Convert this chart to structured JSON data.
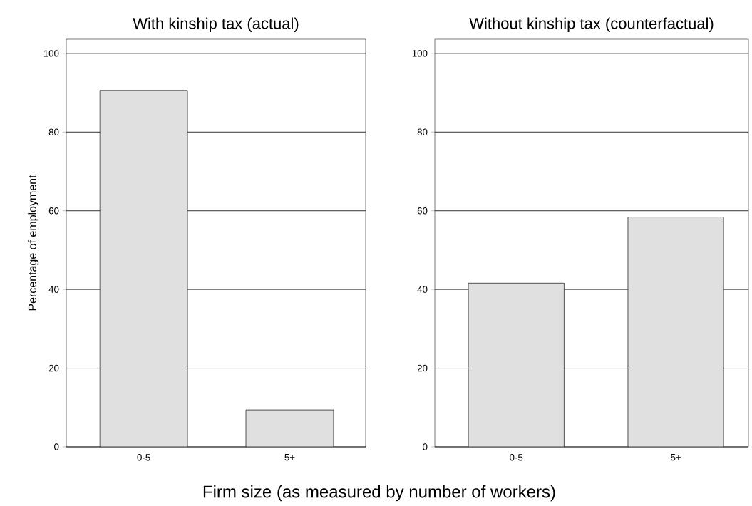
{
  "chart_data": [
    {
      "type": "bar",
      "title": "With kinship tax (actual)",
      "xlabel": "Firm size (as measured by number of workers)",
      "ylabel": "Percentage of employment",
      "categories": [
        "0-5",
        "5+"
      ],
      "values": [
        90.6,
        9.4
      ],
      "color": "#e0e0e0",
      "ylim": [
        0,
        103.6
      ],
      "yticks": [
        0,
        20,
        40,
        60,
        80,
        100
      ],
      "grid": "y"
    },
    {
      "type": "bar",
      "title": "Without kinship tax (counterfactual)",
      "categories": [
        "0-5",
        "5+"
      ],
      "values": [
        41.6,
        58.4
      ],
      "color": "#e0e0e0",
      "ylim": [
        0,
        103.6
      ],
      "yticks": [
        0,
        20,
        40,
        60,
        80,
        100
      ],
      "grid": "y"
    }
  ]
}
